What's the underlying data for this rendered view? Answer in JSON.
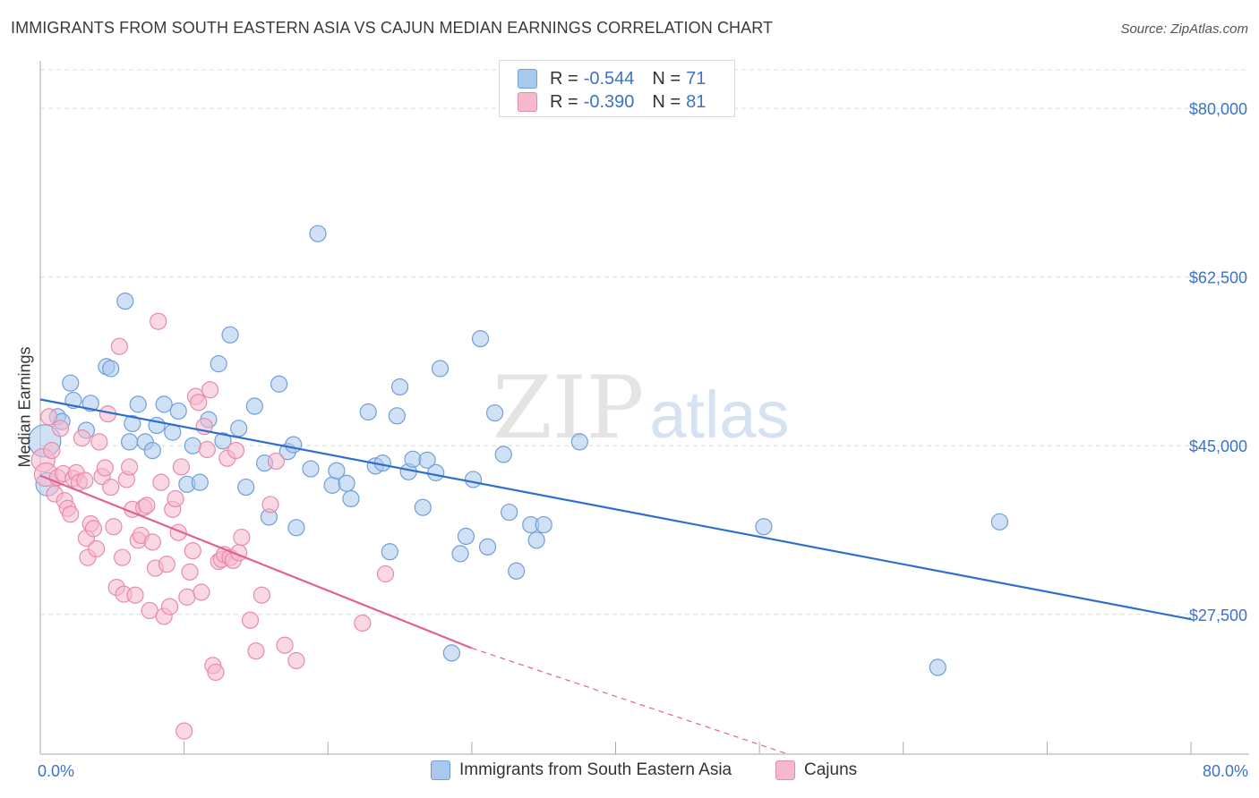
{
  "header": {
    "title": "IMMIGRANTS FROM SOUTH EASTERN ASIA VS CAJUN MEDIAN EARNINGS CORRELATION CHART",
    "source": "Source: ZipAtlas.com"
  },
  "watermark": {
    "zip": "ZIP",
    "atlas": "atlas"
  },
  "legend": {
    "series1": {
      "r_label": "R =",
      "r_value": "-0.544",
      "n_label": "N =",
      "n_value": "71"
    },
    "series2": {
      "r_label": "R =",
      "r_value": "-0.390",
      "n_label": "N =",
      "n_value": "81"
    }
  },
  "colors": {
    "blue_fill": "#aac8ee",
    "blue_stroke": "#6f9fd8",
    "blue_line": "#2f6fcc",
    "pink_fill": "#f5b8cc",
    "pink_stroke": "#e88aab",
    "pink_line": "#e0628d",
    "axis_text": "#3b73c7",
    "grid": "#dcdcdc"
  },
  "chart_data": {
    "type": "scatter",
    "title": "IMMIGRANTS FROM SOUTH EASTERN ASIA VS CAJUN MEDIAN EARNINGS CORRELATION CHART",
    "xlabel": "",
    "ylabel": "Median Earnings",
    "xlim": [
      0,
      80
    ],
    "ylim": [
      13000,
      84000
    ],
    "x_tick_labels": {
      "min": "0.0%",
      "max": "80.0%"
    },
    "y_ticks": [
      {
        "value": 80000,
        "label": "$80,000"
      },
      {
        "value": 62500,
        "label": "$62,500"
      },
      {
        "value": 45000,
        "label": "$45,000"
      },
      {
        "value": 27500,
        "label": "$27,500"
      }
    ],
    "series": [
      {
        "name": "Immigrants from South Eastern Asia",
        "color": "blue",
        "trend": {
          "x": [
            0,
            80
          ],
          "y": [
            49800,
            27000
          ],
          "dashed_to": null
        },
        "points": [
          [
            0.3,
            45500
          ],
          [
            0.5,
            41000
          ],
          [
            1.2,
            48000
          ],
          [
            1.5,
            47500
          ],
          [
            2.1,
            51500
          ],
          [
            2.3,
            49700
          ],
          [
            3.2,
            46600
          ],
          [
            3.5,
            49400
          ],
          [
            4.6,
            53200
          ],
          [
            4.9,
            53000
          ],
          [
            5.9,
            60000
          ],
          [
            6.2,
            45400
          ],
          [
            6.4,
            47300
          ],
          [
            6.8,
            49300
          ],
          [
            7.3,
            45400
          ],
          [
            7.8,
            44500
          ],
          [
            8.1,
            47100
          ],
          [
            8.6,
            49300
          ],
          [
            9.2,
            46400
          ],
          [
            9.6,
            48600
          ],
          [
            10.2,
            41000
          ],
          [
            10.6,
            45000
          ],
          [
            11.1,
            41200
          ],
          [
            11.7,
            47700
          ],
          [
            12.4,
            53500
          ],
          [
            12.7,
            45500
          ],
          [
            13.2,
            56500
          ],
          [
            13.8,
            46800
          ],
          [
            14.3,
            40700
          ],
          [
            14.9,
            49100
          ],
          [
            15.6,
            43200
          ],
          [
            15.9,
            37600
          ],
          [
            16.6,
            51400
          ],
          [
            17.2,
            44400
          ],
          [
            17.6,
            45100
          ],
          [
            17.8,
            36500
          ],
          [
            18.8,
            42600
          ],
          [
            19.3,
            67000
          ],
          [
            20.3,
            40900
          ],
          [
            20.6,
            42400
          ],
          [
            21.3,
            41100
          ],
          [
            21.6,
            39500
          ],
          [
            22.8,
            48500
          ],
          [
            23.3,
            42900
          ],
          [
            23.8,
            43200
          ],
          [
            24.3,
            34000
          ],
          [
            24.8,
            48100
          ],
          [
            25.0,
            51100
          ],
          [
            25.6,
            42300
          ],
          [
            25.9,
            43600
          ],
          [
            26.6,
            38600
          ],
          [
            26.9,
            43500
          ],
          [
            27.5,
            42200
          ],
          [
            27.8,
            53000
          ],
          [
            28.6,
            23500
          ],
          [
            29.2,
            33800
          ],
          [
            29.6,
            35600
          ],
          [
            30.1,
            41500
          ],
          [
            30.6,
            56100
          ],
          [
            31.1,
            34500
          ],
          [
            31.6,
            48400
          ],
          [
            32.2,
            44100
          ],
          [
            32.6,
            38100
          ],
          [
            33.1,
            32000
          ],
          [
            34.1,
            36800
          ],
          [
            34.5,
            35200
          ],
          [
            35.0,
            36800
          ],
          [
            37.5,
            45400
          ],
          [
            50.3,
            36600
          ],
          [
            62.4,
            22000
          ],
          [
            66.7,
            37100
          ]
        ]
      },
      {
        "name": "Cajuns",
        "color": "pink",
        "trend": {
          "x": [
            0,
            30
          ],
          "y": [
            41900,
            24000
          ],
          "dashed_to": [
            52,
            13000
          ]
        },
        "points": [
          [
            0.2,
            43500
          ],
          [
            0.4,
            42000
          ],
          [
            0.6,
            48000
          ],
          [
            0.8,
            44500
          ],
          [
            1.0,
            40000
          ],
          [
            1.2,
            41700
          ],
          [
            1.4,
            46800
          ],
          [
            1.6,
            42100
          ],
          [
            1.7,
            39300
          ],
          [
            1.9,
            38500
          ],
          [
            2.1,
            37900
          ],
          [
            2.3,
            41600
          ],
          [
            2.5,
            42200
          ],
          [
            2.7,
            41200
          ],
          [
            2.9,
            45800
          ],
          [
            3.1,
            41400
          ],
          [
            3.2,
            35400
          ],
          [
            3.3,
            33400
          ],
          [
            3.5,
            36900
          ],
          [
            3.7,
            36400
          ],
          [
            3.9,
            34300
          ],
          [
            4.1,
            45400
          ],
          [
            4.3,
            41800
          ],
          [
            4.5,
            42700
          ],
          [
            4.7,
            48300
          ],
          [
            4.9,
            40700
          ],
          [
            5.1,
            36600
          ],
          [
            5.3,
            30300
          ],
          [
            5.5,
            55300
          ],
          [
            5.7,
            33400
          ],
          [
            5.8,
            29600
          ],
          [
            6.0,
            41500
          ],
          [
            6.2,
            42800
          ],
          [
            6.4,
            38400
          ],
          [
            6.6,
            29500
          ],
          [
            6.8,
            35200
          ],
          [
            7.0,
            35700
          ],
          [
            7.2,
            38600
          ],
          [
            7.4,
            38800
          ],
          [
            7.6,
            27900
          ],
          [
            7.8,
            35000
          ],
          [
            8.0,
            32300
          ],
          [
            8.2,
            57900
          ],
          [
            8.4,
            41200
          ],
          [
            8.6,
            27300
          ],
          [
            8.8,
            32700
          ],
          [
            9.0,
            28300
          ],
          [
            9.2,
            38400
          ],
          [
            9.4,
            39500
          ],
          [
            9.6,
            36000
          ],
          [
            9.8,
            42800
          ],
          [
            10.0,
            15400
          ],
          [
            10.2,
            29300
          ],
          [
            10.4,
            31900
          ],
          [
            10.6,
            34100
          ],
          [
            10.8,
            50100
          ],
          [
            11.0,
            49500
          ],
          [
            11.2,
            29800
          ],
          [
            11.4,
            47000
          ],
          [
            11.6,
            44600
          ],
          [
            11.8,
            50800
          ],
          [
            12.0,
            22200
          ],
          [
            12.2,
            21500
          ],
          [
            12.4,
            33000
          ],
          [
            12.6,
            33200
          ],
          [
            12.8,
            33700
          ],
          [
            13.0,
            43700
          ],
          [
            13.2,
            33400
          ],
          [
            13.4,
            33100
          ],
          [
            13.6,
            44500
          ],
          [
            13.8,
            33900
          ],
          [
            14.0,
            35500
          ],
          [
            14.6,
            26900
          ],
          [
            15.0,
            23700
          ],
          [
            15.4,
            29500
          ],
          [
            16.0,
            38900
          ],
          [
            16.4,
            43400
          ],
          [
            17.0,
            24300
          ],
          [
            17.8,
            22700
          ],
          [
            24.0,
            31700
          ],
          [
            22.4,
            26600
          ]
        ]
      }
    ]
  },
  "bottom_legend": {
    "series1_label": "Immigrants from South Eastern Asia",
    "series2_label": "Cajuns"
  },
  "axes": {
    "y_title": "Median Earnings",
    "x_min_label": "0.0%",
    "x_max_label": "80.0%"
  }
}
